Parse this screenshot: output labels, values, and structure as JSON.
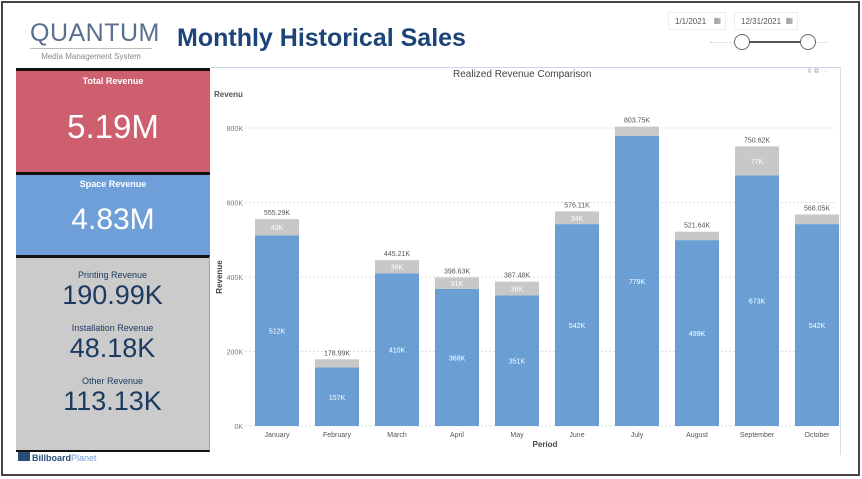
{
  "header": {
    "logo_main": "QUANTUM",
    "logo_sub": "Media Management System",
    "title": "Monthly Historical Sales"
  },
  "date_filter": {
    "start": "1/1/2021",
    "end": "12/31/2021",
    "range_fraction": [
      0,
      1
    ]
  },
  "kpis": {
    "total": {
      "label": "Total Revenue",
      "value": "5.19M",
      "color": "#cd5f6f"
    },
    "space": {
      "label": "Space Revenue",
      "value": "4.83M",
      "color": "#6f9fd8"
    },
    "printing": {
      "label": "Printing Revenue",
      "value": "190.99K"
    },
    "installation": {
      "label": "Installation Revenue",
      "value": "48.18K"
    },
    "other": {
      "label": "Other Revenue",
      "value": "113.13K"
    }
  },
  "footer": {
    "brand_a": "Billboard",
    "brand_b": "Planet"
  },
  "chart_data": {
    "type": "bar",
    "stacked": true,
    "title": "Realized Revenue Comparison",
    "legend_title": "Revenu",
    "xlabel": "Period",
    "ylabel": "Revenue",
    "ylim": [
      0,
      800
    ],
    "yticks": [
      "0K",
      "200K",
      "400K",
      "600K",
      "800K"
    ],
    "categories": [
      "January",
      "February",
      "March",
      "April",
      "May",
      "June",
      "July",
      "August",
      "September",
      "October"
    ],
    "totals": [
      555.29,
      178.99,
      445.21,
      398.63,
      387.48,
      576.11,
      803.75,
      521.64,
      750.62,
      568.05
    ],
    "total_labels": [
      "555.29K",
      "178.99K",
      "445.21K",
      "398.63K",
      "387.48K",
      "576.11K",
      "803.75K",
      "521.64K",
      "750.62K",
      "568.05K"
    ],
    "series": [
      {
        "values": [
          512,
          157,
          410,
          368,
          351,
          542,
          779,
          499,
          673,
          542
        ],
        "labels": [
          "512K",
          "157K",
          "410K",
          "368K",
          "351K",
          "542K",
          "779K",
          "499K",
          "673K",
          "542K"
        ],
        "color": "#6b9fd4"
      },
      {
        "labels": [
          "43K",
          "",
          "36K",
          "31K",
          "36K",
          "34K",
          "",
          "",
          "77K",
          ""
        ],
        "color": "#c8c8c8"
      }
    ],
    "grid": true
  }
}
